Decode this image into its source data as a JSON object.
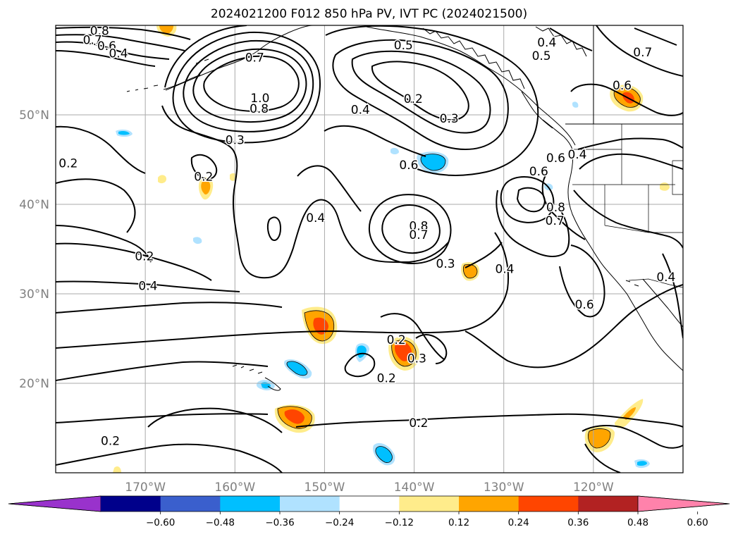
{
  "title": "2024021200 F012 850 hPa PV, IVT PC (2024021500)",
  "map": {
    "lon_range": [
      -180,
      -110
    ],
    "lat_range": [
      10,
      60
    ],
    "grid": true,
    "lon_ticks": [
      {
        "lon": -170,
        "label": "170°W"
      },
      {
        "lon": -160,
        "label": "160°W"
      },
      {
        "lon": -150,
        "label": "150°W"
      },
      {
        "lon": -140,
        "label": "140°W"
      },
      {
        "lon": -130,
        "label": "130°W"
      },
      {
        "lon": -120,
        "label": "120°W"
      }
    ],
    "lat_ticks": [
      {
        "lat": 50,
        "label": "50°N"
      },
      {
        "lat": 40,
        "label": "40°N"
      },
      {
        "lat": 30,
        "label": "30°N"
      },
      {
        "lat": 20,
        "label": "20°N"
      }
    ],
    "contour_labels": [
      {
        "text": "0.8",
        "lon": -175.1,
        "lat": 59.4
      },
      {
        "text": "0.7",
        "lon": -175.9,
        "lat": 58.4
      },
      {
        "text": "0.6",
        "lon": -174.3,
        "lat": 57.7
      },
      {
        "text": "0.4",
        "lon": -173.0,
        "lat": 56.9
      },
      {
        "text": "0.7",
        "lon": -157.8,
        "lat": 56.4
      },
      {
        "text": "1.0",
        "lon": -157.2,
        "lat": 51.9
      },
      {
        "text": "0.8",
        "lon": -157.3,
        "lat": 50.7
      },
      {
        "text": "0.3",
        "lon": -160.0,
        "lat": 47.2
      },
      {
        "text": "0.5",
        "lon": -141.2,
        "lat": 57.8
      },
      {
        "text": "0.2",
        "lon": -140.1,
        "lat": 51.8
      },
      {
        "text": "0.4",
        "lon": -146.0,
        "lat": 50.6
      },
      {
        "text": "0.3",
        "lon": -136.1,
        "lat": 49.6
      },
      {
        "text": "0.4",
        "lon": -125.2,
        "lat": 58.1
      },
      {
        "text": "0.5",
        "lon": -125.8,
        "lat": 56.6
      },
      {
        "text": "0.7",
        "lon": -114.5,
        "lat": 57.0
      },
      {
        "text": "0.6",
        "lon": -116.8,
        "lat": 53.3
      },
      {
        "text": "0.6",
        "lon": -124.2,
        "lat": 45.2
      },
      {
        "text": "0.4",
        "lon": -121.8,
        "lat": 45.6
      },
      {
        "text": "0.6",
        "lon": -126.1,
        "lat": 43.7
      },
      {
        "text": "0.8",
        "lon": -124.2,
        "lat": 39.7
      },
      {
        "text": "0.7",
        "lon": -124.3,
        "lat": 38.2
      },
      {
        "text": "0.2",
        "lon": -178.6,
        "lat": 44.6
      },
      {
        "text": "0.2",
        "lon": -163.5,
        "lat": 43.1
      },
      {
        "text": "0.6",
        "lon": -140.6,
        "lat": 44.4
      },
      {
        "text": "0.4",
        "lon": -151.0,
        "lat": 38.5
      },
      {
        "text": "0.8",
        "lon": -139.5,
        "lat": 37.6
      },
      {
        "text": "0.7",
        "lon": -139.5,
        "lat": 36.6
      },
      {
        "text": "0.2",
        "lon": -170.1,
        "lat": 34.2
      },
      {
        "text": "0.3",
        "lon": -136.5,
        "lat": 33.4
      },
      {
        "text": "0.4",
        "lon": -169.7,
        "lat": 30.9
      },
      {
        "text": "0.4",
        "lon": -129.9,
        "lat": 32.8
      },
      {
        "text": "0.6",
        "lon": -121.0,
        "lat": 28.8
      },
      {
        "text": "0.4",
        "lon": -111.9,
        "lat": 31.9
      },
      {
        "text": "0.2",
        "lon": -142.0,
        "lat": 24.9
      },
      {
        "text": "0.3",
        "lon": -139.7,
        "lat": 22.8
      },
      {
        "text": "0.2",
        "lon": -143.1,
        "lat": 20.6
      },
      {
        "text": "0.2",
        "lon": -139.5,
        "lat": 15.6
      },
      {
        "text": "0.2",
        "lon": -173.9,
        "lat": 13.6
      }
    ]
  },
  "colorbar": {
    "colors": [
      "#9932cc",
      "#00008b",
      "#3a5fcd",
      "#00bfff",
      "#b0e2ff",
      "#ffffff",
      "#ffec8b",
      "#ffa500",
      "#ff4500",
      "#b22222",
      "#ff82ab"
    ],
    "tick_labels": [
      "−0.60",
      "−0.48",
      "−0.36",
      "−0.24",
      "−0.12",
      "0.12",
      "0.24",
      "0.36",
      "0.48",
      "0.60"
    ]
  }
}
